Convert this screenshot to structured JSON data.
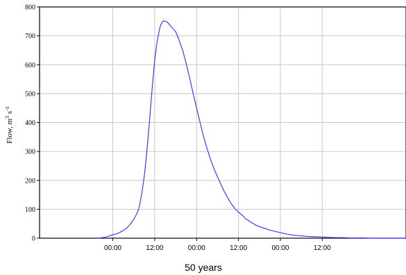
{
  "chart_data": {
    "type": "line",
    "title": "",
    "caption": "50 years",
    "ylabel": {
      "base": "Flow, m",
      "sup1": "3",
      "mid": " s",
      "sup2": "-1"
    },
    "xlabel": "",
    "ylim": [
      0,
      800
    ],
    "yticks": [
      0,
      100,
      200,
      300,
      400,
      500,
      600,
      700,
      800
    ],
    "xlim": [
      -21,
      84
    ],
    "xticks": [
      {
        "x": 0,
        "label": "00:00"
      },
      {
        "x": 12,
        "label": "12:00"
      },
      {
        "x": 24,
        "label": "00:00"
      },
      {
        "x": 36,
        "label": "12:00"
      },
      {
        "x": 48,
        "label": "00:00"
      },
      {
        "x": 60,
        "label": "12:00"
      }
    ],
    "grid": true,
    "series": [
      {
        "color": "#3a3aff",
        "x": [
          -4.5,
          -3,
          -2,
          -1,
          0,
          1,
          2,
          3,
          4,
          5,
          6,
          7,
          7.5,
          8,
          8.5,
          9,
          9.5,
          10,
          10.5,
          11,
          11.5,
          12,
          12.5,
          13,
          13.5,
          14,
          14.5,
          15,
          15.5,
          16,
          16.5,
          17,
          18,
          19,
          20,
          21,
          22,
          23,
          24,
          25,
          26,
          27,
          28,
          29,
          30,
          31,
          32,
          33,
          34,
          35,
          36,
          37,
          38,
          39,
          40,
          41,
          42,
          43,
          44,
          45,
          46,
          47,
          48,
          50,
          52,
          54,
          56,
          58,
          60,
          62,
          64,
          66,
          68,
          70,
          72,
          74,
          76,
          78,
          80,
          82,
          84
        ],
        "y": [
          0,
          2,
          4,
          8,
          12,
          15,
          20,
          27,
          35,
          48,
          65,
          88,
          105,
          135,
          170,
          215,
          270,
          335,
          405,
          480,
          550,
          615,
          665,
          700,
          730,
          745,
          752,
          750,
          748,
          742,
          735,
          728,
          715,
          685,
          650,
          605,
          555,
          500,
          450,
          400,
          352,
          310,
          272,
          240,
          212,
          185,
          160,
          138,
          118,
          102,
          90,
          80,
          68,
          60,
          52,
          45,
          40,
          36,
          32,
          28,
          25,
          22,
          19,
          14,
          10,
          8,
          6,
          5,
          4,
          3,
          2,
          2,
          1,
          1,
          1,
          0,
          0,
          0,
          0,
          0,
          0
        ]
      }
    ]
  }
}
